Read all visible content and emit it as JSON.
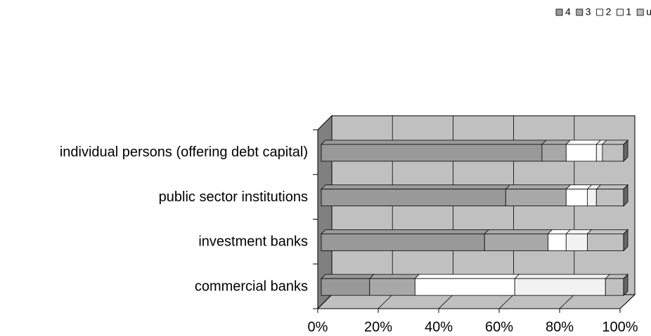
{
  "chart_data": {
    "type": "bar",
    "stacked": true,
    "orientation": "horizontal",
    "categories": [
      "individual persons (offering debt capital)",
      "public sector institutions",
      "investment banks",
      "commercial banks"
    ],
    "series": [
      {
        "name": "4",
        "color": "#999999",
        "values": [
          73,
          61,
          54,
          16
        ]
      },
      {
        "name": "3",
        "color": "#a8a8a8",
        "values": [
          8,
          20,
          21,
          15
        ]
      },
      {
        "name": "2",
        "color": "#ffffff",
        "values": [
          10,
          7,
          6,
          33
        ]
      },
      {
        "name": "1",
        "color": "#f2f2f2",
        "values": [
          2,
          3,
          7,
          30
        ]
      },
      {
        "name": "unanswered",
        "color": "#c0c0c0",
        "values": [
          7,
          9,
          12,
          6
        ]
      }
    ],
    "xlim": [
      0,
      100
    ],
    "xticks": [
      {
        "value": 0,
        "label": "0%"
      },
      {
        "value": 20,
        "label": "20%"
      },
      {
        "value": 40,
        "label": "40%"
      },
      {
        "value": 60,
        "label": "60%"
      },
      {
        "value": 80,
        "label": "80%"
      },
      {
        "value": 100,
        "label": "100%"
      }
    ],
    "grid": true,
    "legend": "top-right"
  }
}
